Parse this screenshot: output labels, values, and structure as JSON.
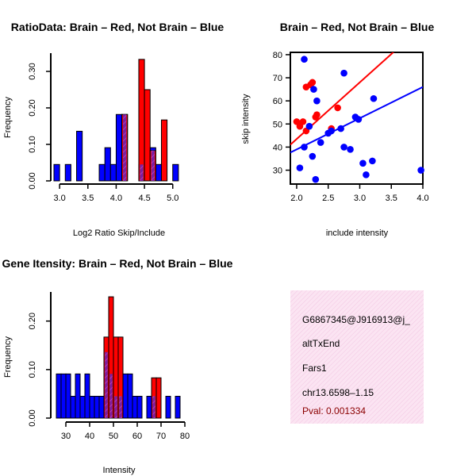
{
  "chart_data": [
    {
      "type": "bar",
      "title": "RatioData: Brain – Red, Not Brain – Blue",
      "xlabel": "Log2 Ratio Skip/Include",
      "ylabel": "Frequency",
      "xlim": [
        2.9,
        5.2
      ],
      "ylim": [
        0,
        0.35
      ],
      "xticks": [
        "3.0",
        "3.5",
        "4.0",
        "4.5",
        "5.0"
      ],
      "yticks": [
        "0.00",
        "0.10",
        "0.20",
        "0.30"
      ],
      "bin_width": 0.1,
      "series": [
        {
          "name": "Not Brain",
          "color": "#0000ff",
          "bins": [
            {
              "x": 2.95,
              "y": 0.045
            },
            {
              "x": 3.15,
              "y": 0.045
            },
            {
              "x": 3.35,
              "y": 0.136
            },
            {
              "x": 3.75,
              "y": 0.045
            },
            {
              "x": 3.85,
              "y": 0.091
            },
            {
              "x": 3.95,
              "y": 0.045
            },
            {
              "x": 4.05,
              "y": 0.182
            },
            {
              "x": 4.15,
              "y": 0.182
            },
            {
              "x": 4.45,
              "y": 0.045
            },
            {
              "x": 4.65,
              "y": 0.091
            },
            {
              "x": 4.75,
              "y": 0.045
            },
            {
              "x": 5.05,
              "y": 0.045
            }
          ]
        },
        {
          "name": "Brain",
          "color": "#ff0000",
          "bins": [
            {
              "x": 4.15,
              "y": 0.182
            },
            {
              "x": 4.45,
              "y": 0.333
            },
            {
              "x": 4.55,
              "y": 0.25
            },
            {
              "x": 4.65,
              "y": 0.083
            },
            {
              "x": 4.85,
              "y": 0.167
            }
          ]
        }
      ]
    },
    {
      "type": "scatter",
      "title": "Brain – Red, Not Brain – Blue",
      "xlabel": "include intensity",
      "ylabel": "skip intensity",
      "xlim": [
        1.9,
        4.0
      ],
      "ylim": [
        24,
        81
      ],
      "xticks": [
        "2.0",
        "2.5",
        "3.0",
        "3.5",
        "4.0"
      ],
      "yticks": [
        "30",
        "40",
        "50",
        "60",
        "70",
        "80"
      ],
      "series": [
        {
          "name": "Brain",
          "color": "#ff0000",
          "points": [
            [
              2.0,
              51
            ],
            [
              2.05,
              49
            ],
            [
              2.1,
              51
            ],
            [
              2.15,
              66
            ],
            [
              2.15,
              47
            ],
            [
              2.22,
              67
            ],
            [
              2.25,
              68
            ],
            [
              2.3,
              53
            ],
            [
              2.32,
              54
            ],
            [
              2.55,
              48
            ],
            [
              2.65,
              57
            ]
          ],
          "fit": {
            "intercept": -5.5,
            "slope": 24.5
          }
        },
        {
          "name": "Not Brain",
          "color": "#0000ff",
          "points": [
            [
              2.05,
              31
            ],
            [
              2.12,
              78
            ],
            [
              2.12,
              40
            ],
            [
              2.2,
              49
            ],
            [
              2.25,
              36
            ],
            [
              2.27,
              65
            ],
            [
              2.3,
              26
            ],
            [
              2.32,
              60
            ],
            [
              2.38,
              42
            ],
            [
              2.5,
              46
            ],
            [
              2.55,
              47
            ],
            [
              2.7,
              48
            ],
            [
              2.75,
              72
            ],
            [
              2.75,
              40
            ],
            [
              2.85,
              39
            ],
            [
              2.93,
              53
            ],
            [
              2.98,
              52
            ],
            [
              3.05,
              33
            ],
            [
              3.1,
              28
            ],
            [
              3.2,
              34
            ],
            [
              3.22,
              61
            ],
            [
              3.97,
              30
            ]
          ],
          "fit": {
            "intercept": 12,
            "slope": 13.5
          }
        }
      ]
    },
    {
      "type": "bar",
      "title": "Gene Itensity: Brain – Red, Not Brain – Blue",
      "xlabel": "Intensity",
      "ylabel": "Frequency",
      "xlim": [
        25,
        81
      ],
      "ylim": [
        0,
        0.26
      ],
      "xticks": [
        "30",
        "40",
        "50",
        "60",
        "70",
        "80"
      ],
      "yticks": [
        "0.00",
        "0.10",
        "0.20"
      ],
      "bin_width": 2,
      "series": [
        {
          "name": "Not Brain",
          "color": "#0000ff",
          "bins": [
            {
              "x": 27,
              "y": 0.091
            },
            {
              "x": 29,
              "y": 0.091
            },
            {
              "x": 31,
              "y": 0.091
            },
            {
              "x": 33,
              "y": 0.045
            },
            {
              "x": 35,
              "y": 0.091
            },
            {
              "x": 37,
              "y": 0.045
            },
            {
              "x": 39,
              "y": 0.091
            },
            {
              "x": 41,
              "y": 0.045
            },
            {
              "x": 43,
              "y": 0.045
            },
            {
              "x": 45,
              "y": 0.045
            },
            {
              "x": 47,
              "y": 0.136
            },
            {
              "x": 49,
              "y": 0.091
            },
            {
              "x": 51,
              "y": 0.045
            },
            {
              "x": 53,
              "y": 0.045
            },
            {
              "x": 55,
              "y": 0.091
            },
            {
              "x": 57,
              "y": 0.091
            },
            {
              "x": 59,
              "y": 0.045
            },
            {
              "x": 61,
              "y": 0.045
            },
            {
              "x": 65,
              "y": 0.045
            },
            {
              "x": 67,
              "y": 0.045
            },
            {
              "x": 73,
              "y": 0.045
            },
            {
              "x": 77,
              "y": 0.045
            }
          ]
        },
        {
          "name": "Brain",
          "color": "#ff0000",
          "bins": [
            {
              "x": 47,
              "y": 0.167
            },
            {
              "x": 49,
              "y": 0.25
            },
            {
              "x": 51,
              "y": 0.167
            },
            {
              "x": 53,
              "y": 0.167
            },
            {
              "x": 67,
              "y": 0.083
            },
            {
              "x": 69,
              "y": 0.083
            }
          ]
        }
      ]
    }
  ],
  "info": {
    "lines": [
      "G6867345@J916913@j_",
      "altTxEnd",
      "Fars1",
      "chr13.6598–1.15"
    ],
    "pval": "Pval: 0.001334",
    "pval_color": "#8b0000",
    "background": "#fbe4f2"
  }
}
